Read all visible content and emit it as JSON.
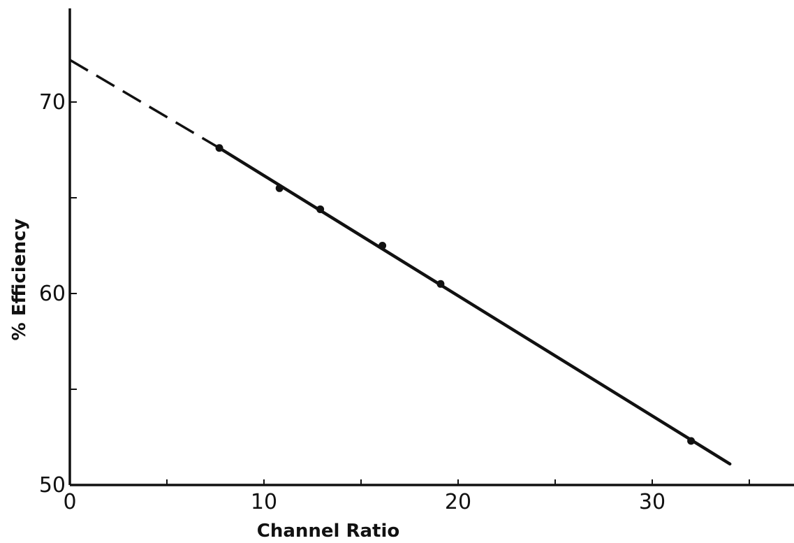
{
  "chart_data": {
    "type": "scatter",
    "xlabel": "Channel Ratio",
    "ylabel": "% Efficiency",
    "xlim": [
      0,
      37
    ],
    "ylim": [
      50,
      75
    ],
    "xticks": [
      0,
      5,
      10,
      15,
      20,
      25,
      30,
      35
    ],
    "xtick_labels": [
      "0",
      "",
      "10",
      "",
      "20",
      "",
      "30",
      ""
    ],
    "yticks": [
      50,
      55,
      60,
      65,
      70
    ],
    "ytick_labels": [
      "50",
      "",
      "60",
      "",
      "70"
    ],
    "grid": false,
    "series": [
      {
        "points": [
          {
            "x": 7.7,
            "y": 67.6
          },
          {
            "x": 10.8,
            "y": 65.5
          },
          {
            "x": 12.9,
            "y": 64.4
          },
          {
            "x": 16.1,
            "y": 62.5
          },
          {
            "x": 19.1,
            "y": 60.5
          },
          {
            "x": 32.0,
            "y": 52.3
          }
        ]
      }
    ],
    "fit_line": {
      "solid": {
        "x": [
          7.7,
          34.0
        ],
        "y": [
          67.6,
          51.1
        ]
      },
      "dashed_extrapolation": {
        "x": [
          0,
          7.7
        ],
        "y": [
          72.2,
          67.6
        ]
      }
    }
  }
}
